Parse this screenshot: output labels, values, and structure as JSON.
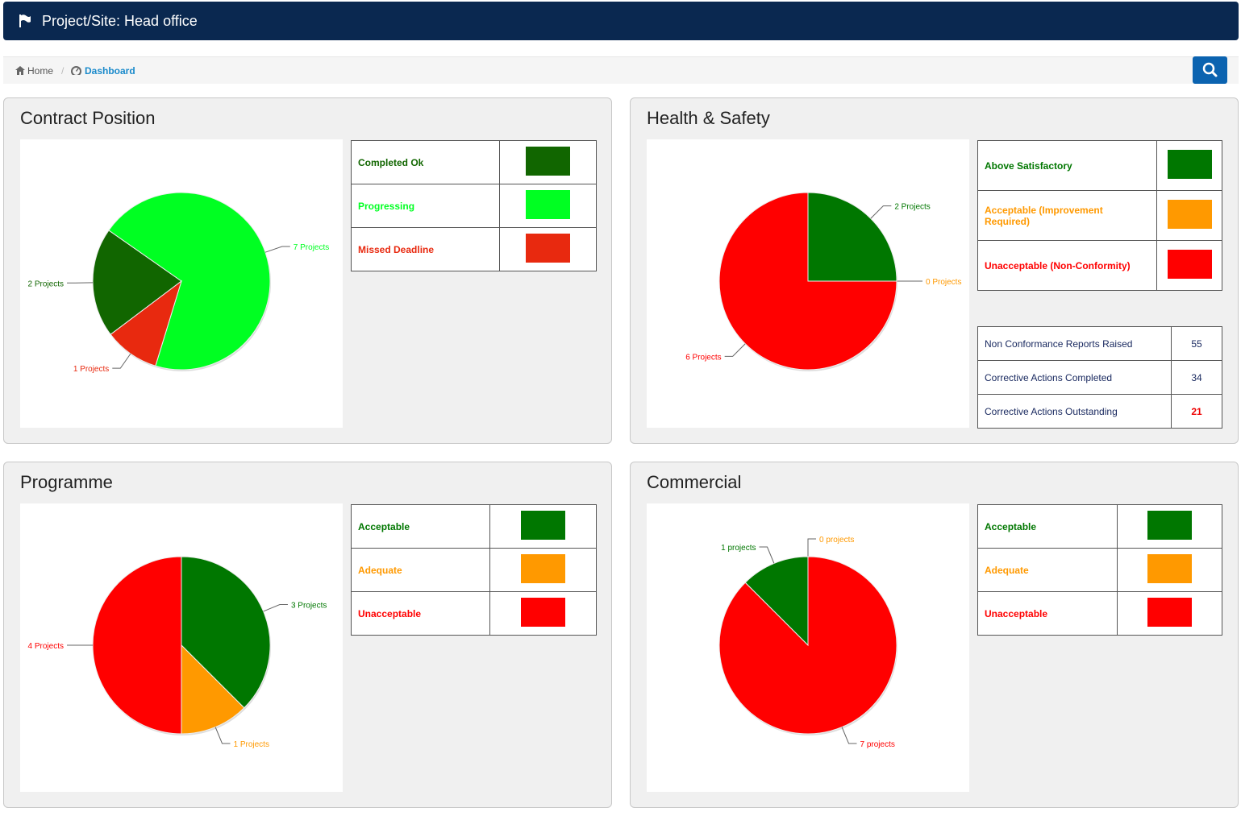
{
  "header": {
    "title": "Project/Site: Head office"
  },
  "breadcrumb": [
    "Home",
    "Dashboard"
  ],
  "chart_data": [
    {
      "type": "pie",
      "title": "Contract Position",
      "categories": [
        "Completed Ok",
        "Progressing",
        "Missed Deadline"
      ],
      "values": [
        2,
        7,
        1
      ],
      "value_labels": [
        "2 Projects",
        "7 Projects",
        "1 Projects"
      ],
      "colors": [
        "#116600",
        "#00ff22",
        "#e8290f"
      ]
    },
    {
      "type": "pie",
      "title": "Health & Safety",
      "categories": [
        "Above Satisfactory",
        "Acceptable (Improvement Required)",
        "Unacceptable (Non-Conformity)"
      ],
      "values": [
        2,
        0,
        6
      ],
      "value_labels": [
        "2 Projects",
        "0 Projects",
        "6 Projects"
      ],
      "colors": [
        "#007700",
        "#ff9900",
        "#ff0000"
      ]
    },
    {
      "type": "pie",
      "title": "Programme",
      "categories": [
        "Acceptable",
        "Adequate",
        "Unacceptable"
      ],
      "values": [
        3,
        1,
        4
      ],
      "value_labels": [
        "3 Projects",
        "1 Projects",
        "4 Projects"
      ],
      "colors": [
        "#007700",
        "#ff9900",
        "#ff0000"
      ]
    },
    {
      "type": "pie",
      "title": "Commercial",
      "categories": [
        "Acceptable",
        "Adequate",
        "Unacceptable"
      ],
      "values": [
        1,
        0,
        7
      ],
      "value_labels": [
        "1 projects",
        "0 projects",
        "7 projects"
      ],
      "colors": [
        "#007700",
        "#ff9900",
        "#ff0000"
      ]
    }
  ],
  "health_safety_stats": {
    "rows": [
      [
        "Non Conformance Reports Raised",
        "55"
      ],
      [
        "Corrective Actions Completed",
        "34"
      ],
      [
        "Corrective Actions Outstanding",
        "21"
      ]
    ]
  }
}
